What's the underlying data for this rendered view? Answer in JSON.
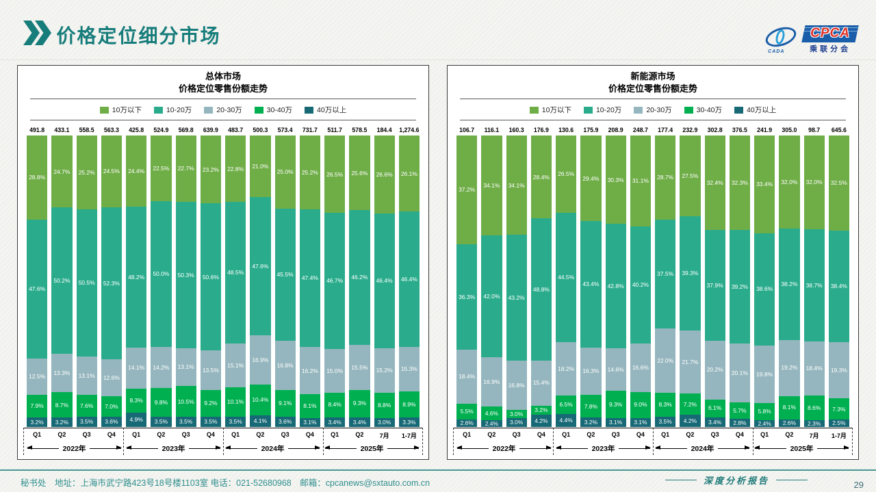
{
  "page": {
    "title": "价格定位细分市场",
    "page_number": "29",
    "footer": {
      "left": "秘书处　地址：上海市武宁路423号18号楼1103室  电话：021-52680968　邮箱：cpcanews@sxtauto.com.cn",
      "right": "深度分析报告"
    },
    "logo": {
      "cada": "CADA",
      "cpca": "CPCA",
      "sub": "乘联分会"
    }
  },
  "legend": [
    {
      "label": "10万以下",
      "color": "#6fad47"
    },
    {
      "label": "10-20万",
      "color": "#2aac8c"
    },
    {
      "label": "20-30万",
      "color": "#95b6be"
    },
    {
      "label": "30-40万",
      "color": "#00b050"
    },
    {
      "label": "40万以上",
      "color": "#176976"
    }
  ],
  "chart_data": [
    {
      "type": "bar",
      "stacked": true,
      "title": "总体市场",
      "subtitle": "价格定位零售份额走势",
      "unit": "%",
      "ylim": [
        0,
        100
      ],
      "legend_position": "top",
      "categories": [
        "Q1",
        "Q2",
        "Q3",
        "Q4",
        "Q1",
        "Q2",
        "Q3",
        "Q4",
        "Q1",
        "Q2",
        "Q3",
        "Q4",
        "Q1",
        "Q2",
        "7月",
        "1-7月"
      ],
      "year_groups": [
        {
          "label": "2022年",
          "span": 4
        },
        {
          "label": "2023年",
          "span": 4
        },
        {
          "label": "2024年",
          "span": 4
        },
        {
          "label": "2025年",
          "span": 4
        }
      ],
      "totals": [
        "491.8",
        "433.1",
        "558.5",
        "563.3",
        "425.8",
        "524.9",
        "569.8",
        "639.9",
        "483.7",
        "500.3",
        "573.4",
        "731.7",
        "511.7",
        "578.5",
        "184.4",
        "1,274.6"
      ],
      "series": [
        {
          "name": "10万以下",
          "values": [
            28.8,
            24.7,
            25.2,
            24.5,
            24.4,
            22.5,
            22.7,
            23.2,
            22.8,
            21.0,
            25.0,
            25.2,
            26.5,
            25.6,
            26.6,
            26.1
          ]
        },
        {
          "name": "10-20万",
          "values": [
            47.6,
            50.2,
            50.5,
            52.3,
            48.2,
            50.0,
            50.3,
            50.6,
            48.5,
            47.6,
            45.5,
            47.4,
            46.7,
            46.2,
            46.4,
            46.4
          ]
        },
        {
          "name": "20-30万",
          "values": [
            12.5,
            13.3,
            13.1,
            12.6,
            14.1,
            14.2,
            13.1,
            13.5,
            15.1,
            16.9,
            16.8,
            16.2,
            15.0,
            15.5,
            15.2,
            15.3
          ]
        },
        {
          "name": "30-40万",
          "values": [
            7.9,
            8.7,
            7.6,
            7.0,
            8.3,
            9.8,
            10.5,
            9.2,
            10.1,
            10.4,
            9.1,
            8.1,
            8.4,
            9.3,
            8.8,
            8.9
          ]
        },
        {
          "name": "40万以上",
          "values": [
            3.2,
            3.2,
            3.5,
            3.6,
            4.9,
            3.5,
            3.5,
            3.5,
            3.5,
            4.1,
            3.6,
            3.1,
            3.4,
            3.4,
            3.0,
            3.3
          ]
        }
      ]
    },
    {
      "type": "bar",
      "stacked": true,
      "title": "新能源市场",
      "subtitle": "价格定位零售份额走势",
      "unit": "%",
      "ylim": [
        0,
        100
      ],
      "legend_position": "top",
      "categories": [
        "Q1",
        "Q2",
        "Q3",
        "Q4",
        "Q1",
        "Q2",
        "Q3",
        "Q4",
        "Q1",
        "Q2",
        "Q3",
        "Q4",
        "Q1",
        "Q2",
        "7月",
        "1-7月"
      ],
      "year_groups": [
        {
          "label": "2022年",
          "span": 4
        },
        {
          "label": "2023年",
          "span": 4
        },
        {
          "label": "2024年",
          "span": 4
        },
        {
          "label": "2025年",
          "span": 4
        }
      ],
      "totals": [
        "106.7",
        "116.1",
        "160.3",
        "176.9",
        "130.6",
        "175.9",
        "208.9",
        "248.7",
        "177.4",
        "232.9",
        "302.8",
        "376.5",
        "241.9",
        "305.0",
        "98.7",
        "645.6"
      ],
      "series": [
        {
          "name": "10万以下",
          "values": [
            37.2,
            34.1,
            34.1,
            28.4,
            26.5,
            29.4,
            30.3,
            31.1,
            28.7,
            27.5,
            32.4,
            32.3,
            33.4,
            32.0,
            32.0,
            32.5
          ]
        },
        {
          "name": "10-20万",
          "values": [
            36.3,
            42.0,
            43.2,
            48.8,
            44.5,
            43.4,
            42.8,
            40.2,
            37.5,
            39.3,
            37.9,
            39.2,
            38.6,
            38.2,
            38.7,
            38.4
          ]
        },
        {
          "name": "20-30万",
          "values": [
            18.4,
            16.9,
            16.8,
            15.4,
            18.2,
            16.3,
            14.6,
            16.6,
            22.0,
            21.7,
            20.2,
            20.1,
            19.8,
            19.2,
            18.4,
            19.3
          ]
        },
        {
          "name": "30-40万",
          "values": [
            5.5,
            4.6,
            3.0,
            3.2,
            6.5,
            7.8,
            9.3,
            9.0,
            8.3,
            7.2,
            6.1,
            5.7,
            5.8,
            8.1,
            8.6,
            7.3
          ]
        },
        {
          "name": "40万以上",
          "values": [
            2.6,
            2.4,
            3.0,
            4.2,
            4.4,
            3.2,
            3.1,
            3.1,
            3.5,
            4.2,
            3.4,
            2.8,
            2.4,
            2.6,
            2.3,
            2.5
          ]
        }
      ]
    }
  ]
}
